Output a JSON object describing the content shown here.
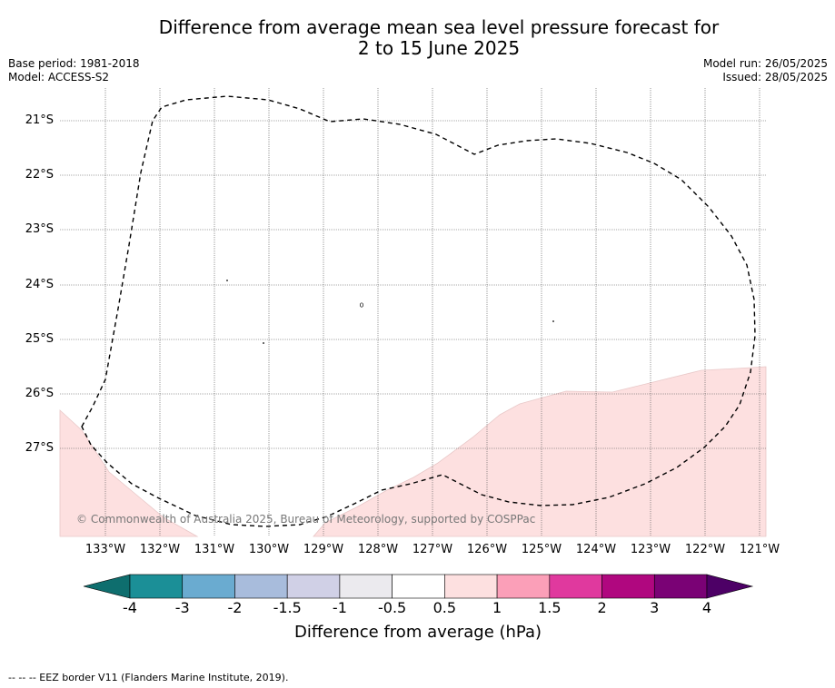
{
  "header": {
    "title_line1": "Difference from average mean sea level pressure forecast for",
    "title_line2": "2 to 15 June 2025",
    "base_period": "Base period: 1981-2018",
    "model": "Model: ACCESS-S2",
    "model_run": "Model run: 26/05/2025",
    "issued": "Issued: 28/05/2025"
  },
  "map": {
    "lat_labels": [
      "21°S",
      "22°S",
      "23°S",
      "24°S",
      "25°S",
      "26°S",
      "27°S"
    ],
    "lon_labels": [
      "133°W",
      "132°W",
      "131°W",
      "130°W",
      "129°W",
      "128°W",
      "127°W",
      "126°W",
      "125°W",
      "124°W",
      "123°W",
      "122°W",
      "121°W"
    ],
    "copyright": "© Commonwealth of Australia 2025, Bureau of Meteorology, supported by COSPPac",
    "anomaly_region_value_range": "0.5 to 1",
    "anomaly_fill_color": "#fde0e0"
  },
  "colorbar": {
    "title": "Difference from average (hPa)",
    "tick_labels": [
      "-4",
      "-3",
      "-2",
      "-1.5",
      "-1",
      "-0.5",
      "0.5",
      "1",
      "1.5",
      "2",
      "3",
      "4"
    ],
    "colors": [
      "#0e6e6e",
      "#1b8f97",
      "#6aabd0",
      "#a8bcdc",
      "#d0d0e6",
      "#ebeaee",
      "#ffffff",
      "#fde0e0",
      "#fb9fb8",
      "#e0399e",
      "#b0077f",
      "#7a0275",
      "#4d0066"
    ]
  },
  "footnote": "-- -- -- EEZ border V11 (Flanders Marine Institute, 2019)."
}
